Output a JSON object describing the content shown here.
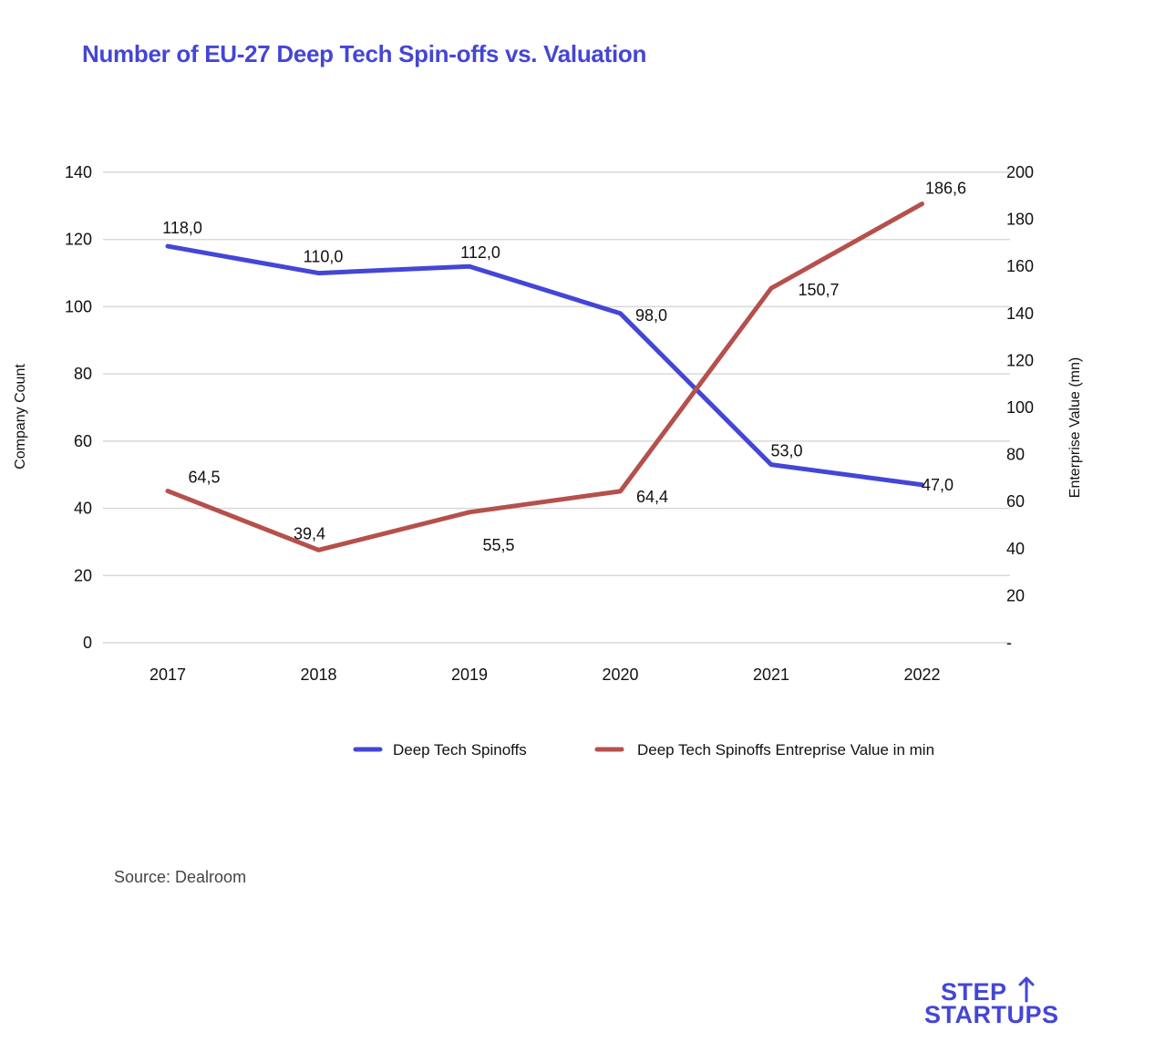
{
  "title": "Number of EU-27 Deep Tech Spin-offs vs. Valuation",
  "source": "Source: Dealroom",
  "logo": {
    "line1": "STEP",
    "line2": "STARTUPS"
  },
  "colors": {
    "series_1": "#4446d6",
    "series_2": "#b5504c",
    "title": "#4446d6",
    "grid": "#d9d9d9"
  },
  "chart_data": {
    "type": "line",
    "x": [
      "2017",
      "2018",
      "2019",
      "2020",
      "2021",
      "2022"
    ],
    "ylabel": "Company Count",
    "y2label": "Enterprise Value (mn)",
    "ylim": [
      0,
      140
    ],
    "y2lim": [
      0,
      200
    ],
    "yticks": [
      "0",
      "20",
      "40",
      "60",
      "80",
      "100",
      "120",
      "140"
    ],
    "y2ticks": [
      "-",
      "20",
      "40",
      "60",
      "80",
      "100",
      "120",
      "140",
      "160",
      "180",
      "200"
    ],
    "grid": true,
    "legend_position": "bottom",
    "series": [
      {
        "name": "Deep Tech Spinoffs",
        "axis": "left",
        "values": [
          118.0,
          110.0,
          112.0,
          98.0,
          53.0,
          47.0
        ],
        "labels": [
          "118,0",
          "110,0",
          "112,0",
          "98,0",
          "53,0",
          "47,0"
        ]
      },
      {
        "name": "Deep Tech Spinoffs Entreprise Value in min",
        "axis": "right",
        "values": [
          64.5,
          39.4,
          55.5,
          64.4,
          150.7,
          186.6
        ],
        "labels": [
          "64,5",
          "39,4",
          "55,5",
          "64,4",
          "150,7",
          "186,6"
        ]
      }
    ]
  }
}
